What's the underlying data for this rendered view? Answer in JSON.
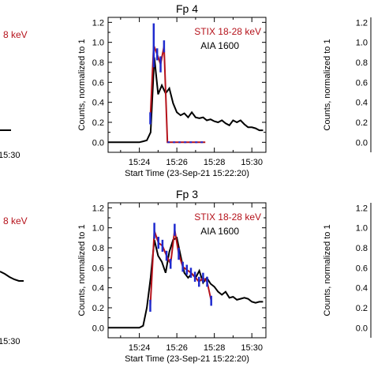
{
  "chart_data": [
    {
      "type": "line",
      "title": "Fp 4",
      "xlabel": "Start Time (23-Sep-21 15:22:20)",
      "ylabel": "Counts, normalized to 1",
      "x_tick_labels": [
        "15:24",
        "15:26",
        "15:28",
        "15:30"
      ],
      "x_tick_seconds": [
        100,
        220,
        340,
        460
      ],
      "xlim_seconds": [
        0,
        505
      ],
      "ylim": [
        -0.1,
        1.25
      ],
      "y_ticks": [
        0.0,
        0.2,
        0.4,
        0.6,
        0.8,
        1.0,
        1.2
      ],
      "legend": [
        "STIX 18-28 keV",
        "AIA 1600"
      ],
      "legend_position": "top-right",
      "series": [
        {
          "name": "AIA 1600",
          "color": "#000000",
          "x_seconds": [
            0,
            25,
            50,
            75,
            100,
            112,
            124,
            136,
            148,
            160,
            172,
            184,
            196,
            208,
            220,
            232,
            244,
            256,
            268,
            280,
            292,
            304,
            316,
            328,
            340,
            352,
            364,
            376,
            388,
            400,
            412,
            424,
            436,
            448,
            460,
            472,
            484,
            496
          ],
          "y": [
            0.0,
            0.0,
            0.0,
            0.0,
            0.0,
            0.01,
            0.02,
            0.1,
            0.85,
            0.48,
            0.57,
            0.49,
            0.54,
            0.39,
            0.3,
            0.27,
            0.29,
            0.25,
            0.3,
            0.25,
            0.24,
            0.25,
            0.22,
            0.23,
            0.21,
            0.2,
            0.22,
            0.19,
            0.17,
            0.22,
            0.2,
            0.22,
            0.18,
            0.15,
            0.15,
            0.14,
            0.12,
            0.12
          ]
        },
        {
          "name": "STIX 18-28 keV",
          "color": "#b5121b",
          "x_seconds": [
            135,
            146,
            157,
            168,
            179,
            190,
            201,
            212,
            223,
            234,
            245,
            256,
            267,
            278,
            289,
            300,
            311
          ],
          "y": [
            0.24,
            0.97,
            0.88,
            0.78,
            0.96,
            0.0,
            0.0,
            0.0,
            0.0,
            0.0,
            0.0,
            0.0,
            0.0,
            0.0,
            0.0,
            0.0,
            0.0
          ],
          "errors": [
            0.06,
            0.22,
            0.06,
            0.08,
            0.06,
            0.0,
            0.0,
            0.0,
            0.0,
            0.0,
            0.0,
            0.0,
            0.0,
            0.0,
            0.0,
            0.0,
            0.0
          ],
          "error_color": "#1f2bcf"
        }
      ]
    },
    {
      "type": "line",
      "title": "Fp 3",
      "xlabel": "Start Time (23-Sep-21 15:22:20)",
      "ylabel": "Counts, normalized to 1",
      "x_tick_labels": [
        "15:24",
        "15:26",
        "15:28",
        "15:30"
      ],
      "x_tick_seconds": [
        100,
        220,
        340,
        460
      ],
      "xlim_seconds": [
        0,
        505
      ],
      "ylim": [
        -0.1,
        1.25
      ],
      "y_ticks": [
        0.0,
        0.2,
        0.4,
        0.6,
        0.8,
        1.0,
        1.2
      ],
      "legend": [
        "STIX 18-28 keV",
        "AIA 1600"
      ],
      "legend_position": "top-right",
      "series": [
        {
          "name": "AIA 1600",
          "color": "#000000",
          "x_seconds": [
            0,
            25,
            50,
            75,
            100,
            112,
            124,
            136,
            148,
            160,
            172,
            184,
            196,
            208,
            220,
            232,
            244,
            256,
            268,
            280,
            292,
            304,
            316,
            328,
            340,
            352,
            364,
            376,
            388,
            400,
            412,
            424,
            436,
            448,
            460,
            472,
            484,
            496
          ],
          "y": [
            0.0,
            0.0,
            0.0,
            0.0,
            0.0,
            0.02,
            0.2,
            0.5,
            0.88,
            0.72,
            0.66,
            0.55,
            0.76,
            0.88,
            0.9,
            0.72,
            0.55,
            0.5,
            0.54,
            0.5,
            0.57,
            0.45,
            0.5,
            0.44,
            0.41,
            0.36,
            0.33,
            0.36,
            0.3,
            0.31,
            0.28,
            0.29,
            0.3,
            0.29,
            0.26,
            0.25,
            0.26,
            0.26
          ]
        },
        {
          "name": "STIX 18-28 keV",
          "color": "#b5121b",
          "x_seconds": [
            135,
            148,
            161,
            174,
            187,
            200,
            213,
            226,
            239,
            252,
            265,
            278,
            291,
            304,
            317,
            330
          ],
          "y": [
            0.22,
            0.97,
            0.85,
            0.82,
            0.72,
            0.64,
            0.98,
            0.74,
            0.61,
            0.58,
            0.55,
            0.51,
            0.46,
            0.5,
            0.46,
            0.27
          ],
          "errors": [
            0.06,
            0.08,
            0.06,
            0.06,
            0.05,
            0.05,
            0.06,
            0.06,
            0.05,
            0.05,
            0.05,
            0.05,
            0.05,
            0.05,
            0.05,
            0.05
          ],
          "error_color": "#1f2bcf"
        }
      ]
    },
    {
      "type": "line",
      "title": "",
      "xlabel": "",
      "ylabel": "",
      "legend": [
        "8 keV"
      ],
      "x_tick_labels": [
        "15:30"
      ],
      "series": []
    },
    {
      "type": "line",
      "title": "",
      "xlabel": "",
      "ylabel": "",
      "legend": [
        "8 keV"
      ],
      "x_tick_labels": [
        "15:30"
      ],
      "series": []
    },
    {
      "type": "line",
      "title": "",
      "xlabel": "",
      "ylabel": "Counts, normalized to 1",
      "y_tick_labels": [
        "1.2",
        "1.0",
        "0.8",
        "0.6",
        "0.4",
        "0.2",
        "0.0"
      ],
      "series": []
    },
    {
      "type": "line",
      "title": "",
      "xlabel": "",
      "ylabel": "Counts, normalized to 1",
      "y_tick_labels": [
        "1.2",
        "1.0",
        "0.8",
        "0.6",
        "0.4",
        "0.2",
        "0.0"
      ],
      "series": []
    }
  ]
}
